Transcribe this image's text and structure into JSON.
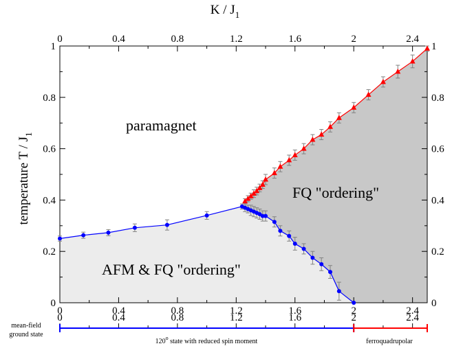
{
  "chart_data": {
    "type": "scatter",
    "title": "",
    "xlabel_top": "K / J",
    "xlabel_top_sub": "1",
    "ylabel": "temperature  T / J",
    "ylabel_sub": "1",
    "xlim": [
      0,
      2.5
    ],
    "ylim": [
      0,
      1
    ],
    "x_ticks": [
      "0",
      "0.4",
      "0.8",
      "1.2",
      "1.6",
      "2",
      "2.4"
    ],
    "y_ticks": [
      "0",
      "0.2",
      "0.4",
      "0.6",
      "0.8",
      "1"
    ],
    "grid": false,
    "regions": [
      {
        "label": "paramagnet",
        "color": "#ffffff"
      },
      {
        "label": "FQ \"ordering\"",
        "color": "#c8c8c8"
      },
      {
        "label": "AFM & FQ \"ordering\"",
        "color": "#ececec"
      }
    ],
    "series": [
      {
        "color": "#0000ff",
        "marker": "circle",
        "points": [
          {
            "x": 0.0,
            "y": 0.25,
            "err": 0.01
          },
          {
            "x": 0.16,
            "y": 0.263,
            "err": 0.012
          },
          {
            "x": 0.33,
            "y": 0.273,
            "err": 0.012
          },
          {
            "x": 0.51,
            "y": 0.292,
            "err": 0.015
          },
          {
            "x": 0.73,
            "y": 0.303,
            "err": 0.02
          },
          {
            "x": 1.0,
            "y": 0.34,
            "err": 0.015
          },
          {
            "x": 1.24,
            "y": 0.375,
            "err": 0.01
          },
          {
            "x": 1.26,
            "y": 0.37,
            "err": 0.015
          },
          {
            "x": 1.28,
            "y": 0.365,
            "err": 0.015
          },
          {
            "x": 1.3,
            "y": 0.36,
            "err": 0.02
          },
          {
            "x": 1.32,
            "y": 0.355,
            "err": 0.02
          },
          {
            "x": 1.34,
            "y": 0.35,
            "err": 0.02
          },
          {
            "x": 1.36,
            "y": 0.345,
            "err": 0.02
          },
          {
            "x": 1.38,
            "y": 0.338,
            "err": 0.02
          },
          {
            "x": 1.4,
            "y": 0.338,
            "err": 0.02
          },
          {
            "x": 1.46,
            "y": 0.315,
            "err": 0.02
          },
          {
            "x": 1.5,
            "y": 0.28,
            "err": 0.02
          },
          {
            "x": 1.56,
            "y": 0.26,
            "err": 0.02
          },
          {
            "x": 1.6,
            "y": 0.23,
            "err": 0.025
          },
          {
            "x": 1.66,
            "y": 0.21,
            "err": 0.02
          },
          {
            "x": 1.72,
            "y": 0.175,
            "err": 0.025
          },
          {
            "x": 1.78,
            "y": 0.15,
            "err": 0.025
          },
          {
            "x": 1.84,
            "y": 0.12,
            "err": 0.025
          },
          {
            "x": 1.9,
            "y": 0.045,
            "err": 0.035
          },
          {
            "x": 2.0,
            "y": 0.0,
            "err": 0.0
          }
        ]
      },
      {
        "color": "#ff0000",
        "marker": "triangle",
        "points": [
          {
            "x": 1.26,
            "y": 0.395,
            "err": 0.01
          },
          {
            "x": 1.28,
            "y": 0.405,
            "err": 0.012
          },
          {
            "x": 1.3,
            "y": 0.415,
            "err": 0.012
          },
          {
            "x": 1.32,
            "y": 0.425,
            "err": 0.015
          },
          {
            "x": 1.34,
            "y": 0.435,
            "err": 0.015
          },
          {
            "x": 1.36,
            "y": 0.447,
            "err": 0.015
          },
          {
            "x": 1.38,
            "y": 0.46,
            "err": 0.015
          },
          {
            "x": 1.4,
            "y": 0.48,
            "err": 0.02
          },
          {
            "x": 1.46,
            "y": 0.505,
            "err": 0.02
          },
          {
            "x": 1.5,
            "y": 0.53,
            "err": 0.02
          },
          {
            "x": 1.56,
            "y": 0.555,
            "err": 0.02
          },
          {
            "x": 1.6,
            "y": 0.575,
            "err": 0.02
          },
          {
            "x": 1.66,
            "y": 0.6,
            "err": 0.02
          },
          {
            "x": 1.72,
            "y": 0.635,
            "err": 0.02
          },
          {
            "x": 1.78,
            "y": 0.655,
            "err": 0.02
          },
          {
            "x": 1.84,
            "y": 0.685,
            "err": 0.02
          },
          {
            "x": 1.9,
            "y": 0.72,
            "err": 0.02
          },
          {
            "x": 2.0,
            "y": 0.76,
            "err": 0.02
          },
          {
            "x": 2.1,
            "y": 0.81,
            "err": 0.02
          },
          {
            "x": 2.2,
            "y": 0.86,
            "err": 0.02
          },
          {
            "x": 2.3,
            "y": 0.9,
            "err": 0.025
          },
          {
            "x": 2.4,
            "y": 0.94,
            "err": 0.025
          },
          {
            "x": 2.5,
            "y": 0.99,
            "err": 0.01
          }
        ]
      }
    ],
    "annotations": {
      "paramagnet": "paramagnet",
      "fq": "FQ \"ordering\"",
      "afm_fq": "AFM & FQ \"ordering\""
    },
    "ground_state": {
      "label_line1": "mean-field",
      "label_line2": "ground state",
      "x_ticks": [
        "0",
        "0.4",
        "0.8",
        "1.2",
        "1.6",
        "2",
        "2.4"
      ],
      "segments": [
        {
          "label": "120",
          "label_sup": "o",
          "label_rest": " state with reduced spin moment",
          "from": 0,
          "to": 2.0,
          "color": "#0000ff"
        },
        {
          "label": "ferroquadrupolar",
          "from": 2.0,
          "to": 2.5,
          "color": "#ff0000"
        }
      ]
    }
  }
}
